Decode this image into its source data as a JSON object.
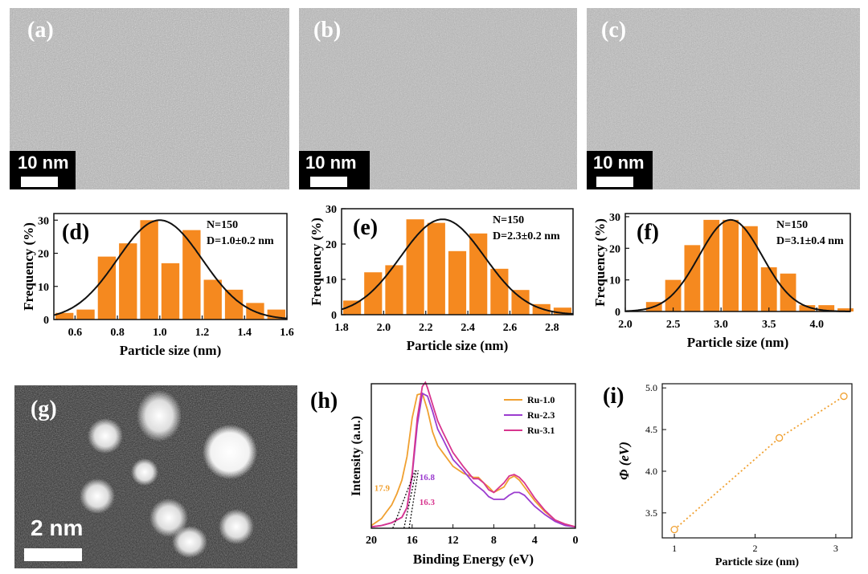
{
  "panels": {
    "a": {
      "label": "(a)",
      "scale": "10 nm"
    },
    "b": {
      "label": "(b)",
      "scale": "10 nm"
    },
    "c": {
      "label": "(c)",
      "scale": "10 nm"
    },
    "g": {
      "label": "(g)",
      "scale": "2 nm"
    }
  },
  "chart_data": [
    {
      "id": "d",
      "type": "bar",
      "label": "(d)",
      "annotation": [
        "N=150",
        "D=1.0±0.2 nm"
      ],
      "xlabel": "Particle size (nm)",
      "ylabel": "Frequency (%)",
      "xlim": [
        0.5,
        1.6
      ],
      "ylim": [
        0,
        32
      ],
      "xticks": [
        0.6,
        0.8,
        1.0,
        1.2,
        1.4,
        1.6
      ],
      "xtick_labels": [
        "0.6",
        "0.8",
        "1.0",
        "1.2",
        "1.4",
        "1.6"
      ],
      "yticks": [
        0,
        10,
        20,
        30
      ],
      "bin_width": 0.1,
      "x": [
        0.55,
        0.65,
        0.75,
        0.85,
        0.95,
        1.05,
        1.15,
        1.25,
        1.35,
        1.45,
        1.55
      ],
      "values": [
        2,
        3,
        19,
        23,
        30,
        17,
        27,
        12,
        9,
        5,
        3
      ],
      "fit": {
        "mean": 1.0,
        "sigma": 0.2,
        "peak": 30
      },
      "bar_color": "#f5891f"
    },
    {
      "id": "e",
      "type": "bar",
      "label": "(e)",
      "annotation": [
        "N=150",
        "D=2.3±0.2 nm"
      ],
      "xlabel": "Particle size (nm)",
      "ylabel": "Frequency (%)",
      "xlim": [
        1.8,
        2.9
      ],
      "ylim": [
        0,
        30
      ],
      "xticks": [
        1.8,
        2.0,
        2.2,
        2.4,
        2.6,
        2.8
      ],
      "xtick_labels": [
        "1.8",
        "2.0",
        "2.2",
        "2.4",
        "2.6",
        "2.8"
      ],
      "yticks": [
        0,
        10,
        20,
        30
      ],
      "bin_width": 0.1,
      "x": [
        1.85,
        1.95,
        2.05,
        2.15,
        2.25,
        2.35,
        2.45,
        2.55,
        2.65,
        2.75,
        2.85
      ],
      "values": [
        4,
        12,
        14,
        27,
        26,
        18,
        23,
        13,
        7,
        3,
        2
      ],
      "fit": {
        "mean": 2.28,
        "sigma": 0.2,
        "peak": 27
      },
      "bar_color": "#f5891f"
    },
    {
      "id": "f",
      "type": "bar",
      "label": "(f)",
      "annotation": [
        "N=150",
        "D=3.1±0.4 nm"
      ],
      "xlabel": "Particle size (nm)",
      "ylabel": "Frequency (%)",
      "xlim": [
        2.0,
        4.35
      ],
      "ylim": [
        0,
        31
      ],
      "xticks": [
        2.0,
        2.5,
        3.0,
        3.5,
        4.0
      ],
      "xtick_labels": [
        "2.0",
        "2.5",
        "3.0",
        "3.5",
        "4.0"
      ],
      "yticks": [
        0,
        10,
        20,
        30
      ],
      "bin_width": 0.2,
      "x": [
        2.3,
        2.5,
        2.7,
        2.9,
        3.1,
        3.3,
        3.5,
        3.7,
        3.9,
        4.1,
        4.3
      ],
      "values": [
        3,
        10,
        21,
        29,
        29,
        27,
        14,
        12,
        2,
        2,
        1
      ],
      "fit": {
        "mean": 3.1,
        "sigma": 0.33,
        "peak": 29
      },
      "bar_color": "#f5891f"
    },
    {
      "id": "h",
      "type": "line",
      "label": "(h)",
      "xlabel": "Binding Energy (eV)",
      "ylabel": "Intensity (a.u.)",
      "xlim": [
        20,
        0
      ],
      "xticks": [
        20,
        16,
        12,
        8,
        4,
        0
      ],
      "ylim": [
        0,
        1.05
      ],
      "series": [
        {
          "name": "Ru-1.0",
          "color": "#f0a030",
          "x": [
            20,
            19,
            18.5,
            18,
            17.5,
            17,
            16.5,
            16,
            15.5,
            15,
            14.5,
            14,
            13.5,
            13,
            12,
            11,
            10,
            9.5,
            9,
            8.5,
            8,
            7,
            6.5,
            6,
            5.5,
            5,
            4,
            3,
            2,
            1,
            0
          ],
          "y": [
            0.02,
            0.07,
            0.12,
            0.17,
            0.25,
            0.35,
            0.52,
            0.8,
            0.97,
            0.98,
            0.86,
            0.7,
            0.6,
            0.55,
            0.45,
            0.4,
            0.37,
            0.37,
            0.33,
            0.3,
            0.26,
            0.3,
            0.36,
            0.38,
            0.35,
            0.3,
            0.2,
            0.12,
            0.06,
            0.03,
            0.01
          ]
        },
        {
          "name": "Ru-2.3",
          "color": "#9b3ccf",
          "x": [
            20,
            19,
            18,
            17,
            16.5,
            16,
            15.5,
            15,
            14.5,
            14,
            13.5,
            13,
            12,
            11,
            10,
            9.5,
            9,
            8.5,
            8,
            7,
            6.5,
            6,
            5.5,
            5,
            4,
            3,
            2,
            1,
            0
          ],
          "y": [
            0.01,
            0.02,
            0.04,
            0.08,
            0.15,
            0.38,
            0.75,
            0.98,
            0.96,
            0.85,
            0.72,
            0.65,
            0.5,
            0.42,
            0.33,
            0.3,
            0.27,
            0.23,
            0.21,
            0.21,
            0.24,
            0.26,
            0.26,
            0.24,
            0.16,
            0.1,
            0.05,
            0.02,
            0.01
          ]
        },
        {
          "name": "Ru-3.1",
          "color": "#d8358e",
          "x": [
            20,
            19,
            18,
            17,
            16.5,
            16,
            15.5,
            15,
            14.7,
            14.5,
            14,
            13.5,
            13,
            12,
            11,
            10,
            9.5,
            9,
            8.5,
            8,
            7,
            6.5,
            6,
            5.5,
            5,
            4,
            3,
            2,
            1,
            0
          ],
          "y": [
            0.01,
            0.02,
            0.04,
            0.08,
            0.15,
            0.4,
            0.8,
            1.03,
            1.06,
            1.02,
            0.9,
            0.78,
            0.7,
            0.55,
            0.45,
            0.36,
            0.36,
            0.33,
            0.28,
            0.26,
            0.33,
            0.38,
            0.39,
            0.37,
            0.33,
            0.22,
            0.13,
            0.06,
            0.03,
            0.01
          ]
        }
      ],
      "annotations": [
        {
          "text": "17.9",
          "color": "#f0a030",
          "x": 17.9
        },
        {
          "text": "16.8",
          "color": "#9b3ccf",
          "x": 16.8
        },
        {
          "text": "16.3",
          "color": "#d8358e",
          "x": 16.3
        }
      ]
    },
    {
      "id": "i",
      "type": "scatter",
      "label": "(i)",
      "xlabel": "Particle size (nm)",
      "ylabel": "Φ (eV)",
      "xlim": [
        0.85,
        3.2
      ],
      "ylim": [
        3.2,
        5.05
      ],
      "xticks": [
        1,
        2,
        3
      ],
      "yticks": [
        3.5,
        4.0,
        4.5,
        5.0
      ],
      "ytick_labels": [
        "3.5",
        "4.0",
        "4.5",
        "5.0"
      ],
      "x": [
        1.0,
        2.3,
        3.1
      ],
      "y": [
        3.3,
        4.4,
        4.9
      ],
      "color": "#f0a030"
    }
  ]
}
